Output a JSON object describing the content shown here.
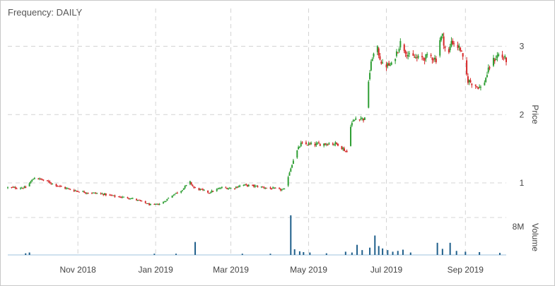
{
  "header": {
    "frequency_label": "Frequency:",
    "frequency_value": "DAILY"
  },
  "chart_data": {
    "type": "candlestick",
    "x_ticks": [
      "Nov 2018",
      "Jan 2019",
      "Mar 2019",
      "May 2019",
      "Jul 2019",
      "Sep 2019"
    ],
    "price_axis": {
      "title": "Price",
      "ticks": [
        1,
        2,
        3
      ],
      "range": [
        0.7,
        3.45
      ]
    },
    "volume_axis": {
      "title": "Volume",
      "ticks": [
        "8M"
      ],
      "range_millions": [
        0,
        11
      ]
    },
    "colors": {
      "up": "#2e9e33",
      "down": "#d62728",
      "volume": "#1f5f8b"
    },
    "price_series": [
      {
        "date": "2018-09-07",
        "close": 0.93
      },
      {
        "date": "2018-09-21",
        "close": 0.93
      },
      {
        "date": "2018-09-28",
        "close": 1.08
      },
      {
        "date": "2018-10-08",
        "close": 1.02
      },
      {
        "date": "2018-10-19",
        "close": 0.94
      },
      {
        "date": "2018-10-29",
        "close": 0.89
      },
      {
        "date": "2018-11-08",
        "close": 0.86
      },
      {
        "date": "2018-11-20",
        "close": 0.84
      },
      {
        "date": "2018-12-01",
        "close": 0.8
      },
      {
        "date": "2018-12-12",
        "close": 0.78
      },
      {
        "date": "2018-12-22",
        "close": 0.72
      },
      {
        "date": "2018-12-29",
        "close": 0.67
      },
      {
        "date": "2019-01-06",
        "close": 0.7
      },
      {
        "date": "2019-01-14",
        "close": 0.82
      },
      {
        "date": "2019-01-21",
        "close": 0.89
      },
      {
        "date": "2019-01-28",
        "close": 1.01
      },
      {
        "date": "2019-01-31",
        "close": 0.93
      },
      {
        "date": "2019-02-12",
        "close": 0.86
      },
      {
        "date": "2019-02-22",
        "close": 0.93
      },
      {
        "date": "2019-03-02",
        "close": 0.92
      },
      {
        "date": "2019-03-10",
        "close": 0.97
      },
      {
        "date": "2019-03-21",
        "close": 0.95
      },
      {
        "date": "2019-04-01",
        "close": 0.92
      },
      {
        "date": "2019-04-10",
        "close": 0.9
      },
      {
        "date": "2019-04-13",
        "close": 0.9
      },
      {
        "date": "2019-04-15",
        "close": 1.1
      },
      {
        "date": "2019-04-20",
        "close": 1.4
      },
      {
        "date": "2019-04-25",
        "close": 1.57
      },
      {
        "date": "2019-05-05",
        "close": 1.56
      },
      {
        "date": "2019-05-17",
        "close": 1.58
      },
      {
        "date": "2019-05-24",
        "close": 1.57
      },
      {
        "date": "2019-05-31",
        "close": 1.45
      },
      {
        "date": "2019-06-03",
        "close": 1.85
      },
      {
        "date": "2019-06-08",
        "close": 1.97
      },
      {
        "date": "2019-06-14",
        "close": 1.93
      },
      {
        "date": "2019-06-17",
        "close": 2.5
      },
      {
        "date": "2019-06-20",
        "close": 2.85
      },
      {
        "date": "2019-06-24",
        "close": 2.95
      },
      {
        "date": "2019-06-28",
        "close": 2.72
      },
      {
        "date": "2019-07-05",
        "close": 2.72
      },
      {
        "date": "2019-07-12",
        "close": 3.05
      },
      {
        "date": "2019-07-19",
        "close": 2.85
      },
      {
        "date": "2019-07-26",
        "close": 2.82
      },
      {
        "date": "2019-08-05",
        "close": 2.85
      },
      {
        "date": "2019-08-10",
        "close": 2.8
      },
      {
        "date": "2019-08-12",
        "close": 3.1
      },
      {
        "date": "2019-08-14",
        "close": 3.15
      },
      {
        "date": "2019-08-18",
        "close": 2.8
      },
      {
        "date": "2019-08-21",
        "close": 3.08
      },
      {
        "date": "2019-08-28",
        "close": 2.96
      },
      {
        "date": "2019-09-03",
        "close": 2.5
      },
      {
        "date": "2019-09-10",
        "close": 2.42
      },
      {
        "date": "2019-09-14",
        "close": 2.38
      },
      {
        "date": "2019-09-21",
        "close": 2.75
      },
      {
        "date": "2019-09-27",
        "close": 2.88
      },
      {
        "date": "2019-10-03",
        "close": 2.8
      }
    ],
    "volume_series": [
      {
        "date": "2018-09-21",
        "value_millions": 0.4
      },
      {
        "date": "2018-09-24",
        "value_millions": 0.6
      },
      {
        "date": "2018-12-31",
        "value_millions": 0.3
      },
      {
        "date": "2019-01-17",
        "value_millions": 0.3
      },
      {
        "date": "2019-02-01",
        "value_millions": 3.2
      },
      {
        "date": "2019-03-10",
        "value_millions": 0.3
      },
      {
        "date": "2019-04-01",
        "value_millions": 0.3
      },
      {
        "date": "2019-04-17",
        "value_millions": 9.8
      },
      {
        "date": "2019-04-20",
        "value_millions": 1.4
      },
      {
        "date": "2019-04-24",
        "value_millions": 0.9
      },
      {
        "date": "2019-04-27",
        "value_millions": 0.7
      },
      {
        "date": "2019-05-02",
        "value_millions": 0.6
      },
      {
        "date": "2019-05-15",
        "value_millions": 0.4
      },
      {
        "date": "2019-05-30",
        "value_millions": 0.8
      },
      {
        "date": "2019-06-04",
        "value_millions": 0.6
      },
      {
        "date": "2019-06-08",
        "value_millions": 2.5
      },
      {
        "date": "2019-06-12",
        "value_millions": 1.2
      },
      {
        "date": "2019-06-18",
        "value_millions": 1.8
      },
      {
        "date": "2019-06-22",
        "value_millions": 4.8
      },
      {
        "date": "2019-06-25",
        "value_millions": 2.2
      },
      {
        "date": "2019-06-28",
        "value_millions": 1.6
      },
      {
        "date": "2019-07-02",
        "value_millions": 1.2
      },
      {
        "date": "2019-07-06",
        "value_millions": 0.8
      },
      {
        "date": "2019-07-10",
        "value_millions": 1.0
      },
      {
        "date": "2019-07-14",
        "value_millions": 1.3
      },
      {
        "date": "2019-07-20",
        "value_millions": 0.6
      },
      {
        "date": "2019-08-10",
        "value_millions": 3.0
      },
      {
        "date": "2019-08-14",
        "value_millions": 1.5
      },
      {
        "date": "2019-08-20",
        "value_millions": 3.0
      },
      {
        "date": "2019-08-25",
        "value_millions": 1.0
      },
      {
        "date": "2019-09-01",
        "value_millions": 0.8
      },
      {
        "date": "2019-09-12",
        "value_millions": 0.7
      },
      {
        "date": "2019-09-28",
        "value_millions": 0.5
      }
    ]
  }
}
